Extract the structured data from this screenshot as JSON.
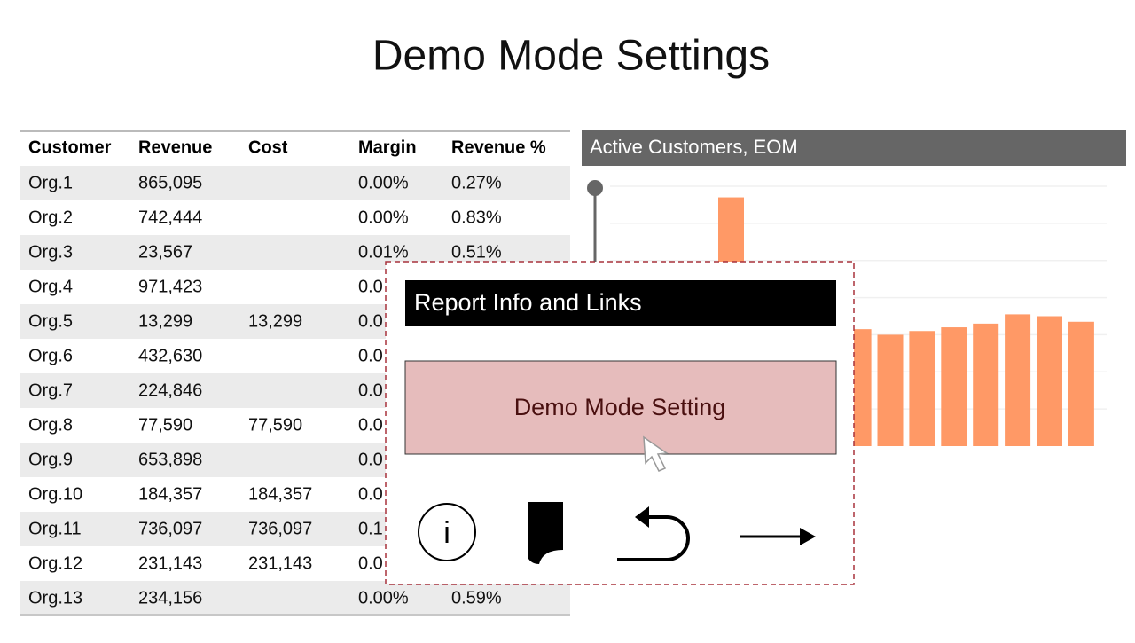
{
  "title": "Demo Mode Settings",
  "table": {
    "columns": [
      "Customer",
      "Revenue",
      "Cost",
      "Margin",
      "Revenue  %"
    ],
    "rows": [
      [
        "Org.1",
        "865,095",
        null,
        "0.00%",
        "0.27%"
      ],
      [
        "Org.2",
        "742,444",
        null,
        "0.00%",
        "0.83%"
      ],
      [
        "Org.3",
        "23,567",
        null,
        "0.01%",
        "0.51%"
      ],
      [
        "Org.4",
        "971,423",
        null,
        "0.0",
        null
      ],
      [
        "Org.5",
        "13,299",
        "13,299",
        "0.0",
        null
      ],
      [
        "Org.6",
        "432,630",
        null,
        "0.0",
        null
      ],
      [
        "Org.7",
        "224,846",
        null,
        "0.0",
        null
      ],
      [
        "Org.8",
        "77,590",
        "77,590",
        "0.0",
        null
      ],
      [
        "Org.9",
        "653,898",
        null,
        "0.0",
        null
      ],
      [
        "Org.10",
        "184,357",
        "184,357",
        "0.0",
        null
      ],
      [
        "Org.11",
        "736,097",
        "736,097",
        "0.1",
        null
      ],
      [
        "Org.12",
        "231,143",
        "231,143",
        "0.0",
        null
      ],
      [
        "Org.13",
        "234,156",
        null,
        "0.00%",
        "0.59%"
      ]
    ]
  },
  "chart_data": {
    "type": "bar",
    "title": "Active Customers, EOM",
    "values": [
      6.7,
      null,
      null,
      null,
      3.15,
      3.0,
      3.1,
      3.2,
      3.3,
      3.55,
      3.5,
      3.35
    ],
    "color": "#ff9966",
    "ylim": [
      0,
      7
    ],
    "yticks": [
      1,
      2,
      3,
      4,
      5,
      6,
      7
    ],
    "grid": true
  },
  "popup": {
    "header": "Report Info and Links",
    "button": "Demo Mode Setting",
    "info_icon": "i"
  }
}
